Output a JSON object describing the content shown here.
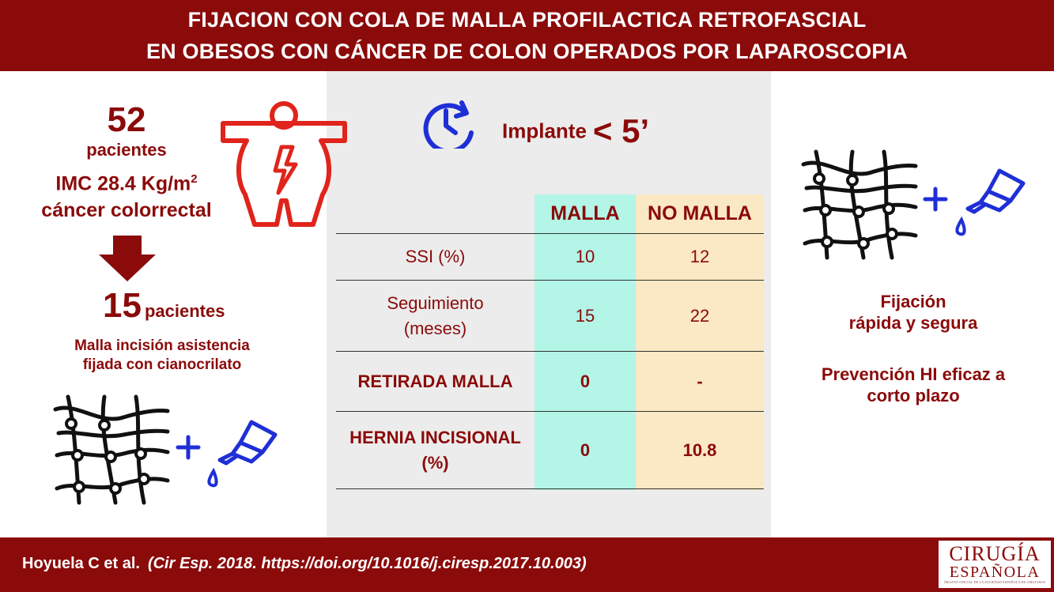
{
  "header": {
    "title_line1": "FIJACION CON COLA DE MALLA PROFILACTICA RETROFASCIAL",
    "title_line2": "EN OBESOS CON CÁNCER DE COLON OPERADOS POR LAPAROSCOPIA"
  },
  "left": {
    "count_total": "52",
    "count_total_label": "pacientes",
    "imc_label": "IMC 28.4 Kg/m",
    "imc_sup": "2",
    "diagnosis": "cáncer colorrectal",
    "count_mesh": "15",
    "count_mesh_label": "pacientes",
    "mesh_line1": "Malla incisión asistencia",
    "mesh_line2": "fijada con cianocrilato"
  },
  "center": {
    "implant_label": "Implante",
    "implant_value": "< 5’",
    "table": {
      "headers": [
        "",
        "MALLA",
        "NO MALLA"
      ],
      "rows": [
        {
          "label": "SSI (%)",
          "malla": "10",
          "no_malla": "12"
        },
        {
          "label_line1": "Seguimiento",
          "label_line2": "(meses)",
          "malla": "15",
          "no_malla": "22"
        },
        {
          "label": "RETIRADA MALLA",
          "malla": "0",
          "no_malla": "-"
        },
        {
          "label_line1": "HERNIA INCISIONAL",
          "label_line2": "(%)",
          "malla": "0",
          "no_malla": "10.8"
        }
      ]
    }
  },
  "right": {
    "fij_line1": "Fijación",
    "fij_line2": "rápida y segura",
    "prev_line1": "Prevención HI eficaz a",
    "prev_line2": "corto plazo"
  },
  "footer": {
    "authors": "Hoyuela C et al.",
    "reference": "(Cir Esp. 2018. https://doi.org/10.1016/j.ciresp.2017.10.003)",
    "logo_line1": "CIRUGÍA",
    "logo_line2": "ESPAÑOLA",
    "logo_line3": "ÓRGANO OFICIAL DE LA SOCIEDAD ESPAÑOLA DE CIRUJANOS"
  },
  "colors": {
    "brand_red": "#8b0a0a",
    "icon_red": "#e0241b",
    "icon_blue": "#1f2fd6",
    "malla_col": "#b3f5e6",
    "no_malla_col": "#fbe8c4",
    "panel_gray": "#ececec"
  },
  "icons": [
    "obese-body-icon",
    "clock-icon",
    "mesh-icon",
    "glue-bottle-icon",
    "arrow-down-icon",
    "plus-icon"
  ]
}
